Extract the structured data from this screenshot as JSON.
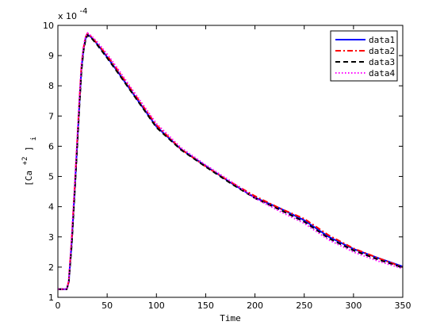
{
  "chart_data": {
    "type": "line",
    "title": "",
    "xlabel": "Time",
    "ylabel": {
      "base": "[Ca",
      "superscript": "+2",
      "close": "]",
      "subscript": "i"
    },
    "xlim": [
      0,
      350
    ],
    "ylim": [
      1,
      10
    ],
    "xticks": [
      0,
      50,
      100,
      150,
      200,
      250,
      300,
      350
    ],
    "yticks": [
      1,
      2,
      3,
      4,
      5,
      6,
      7,
      8,
      9,
      10
    ],
    "y_multiplier": {
      "prefix": "x 10",
      "exponent": "-4"
    },
    "grid": false,
    "legend_position": "top-right",
    "series": [
      {
        "name": "data1",
        "color": "#0000ff",
        "style": "solid",
        "x": [
          0,
          9,
          11,
          14,
          17,
          20,
          22,
          24,
          26,
          28,
          30,
          32,
          34,
          40,
          50,
          60,
          75,
          100,
          125,
          150,
          175,
          200,
          225,
          250,
          275,
          300,
          325,
          350
        ],
        "y": [
          1.27,
          1.27,
          1.5,
          2.8,
          4.5,
          6.3,
          7.5,
          8.6,
          9.2,
          9.55,
          9.7,
          9.65,
          9.6,
          9.38,
          8.95,
          8.5,
          7.8,
          6.65,
          5.9,
          5.35,
          4.8,
          4.3,
          3.95,
          3.55,
          3.0,
          2.6,
          2.3,
          2.02
        ]
      },
      {
        "name": "data2",
        "color": "#ff0000",
        "style": "dashdot",
        "x": [
          0,
          9,
          11,
          14,
          17,
          20,
          22,
          24,
          26,
          28,
          30,
          32,
          34,
          40,
          50,
          60,
          75,
          100,
          125,
          150,
          175,
          200,
          225,
          250,
          275,
          300,
          325,
          350
        ],
        "y": [
          1.27,
          1.27,
          1.52,
          2.9,
          4.6,
          6.4,
          7.6,
          8.7,
          9.25,
          9.6,
          9.73,
          9.68,
          9.62,
          9.4,
          9.0,
          8.55,
          7.85,
          6.7,
          5.9,
          5.33,
          4.82,
          4.35,
          3.95,
          3.6,
          3.05,
          2.62,
          2.3,
          2.0
        ]
      },
      {
        "name": "data3",
        "color": "#000000",
        "style": "dashed",
        "x": [
          0,
          9,
          11,
          14,
          17,
          20,
          22,
          24,
          26,
          28,
          30,
          32,
          34,
          40,
          50,
          60,
          75,
          100,
          125,
          150,
          175,
          200,
          225,
          250,
          275,
          300,
          325,
          350
        ],
        "y": [
          1.27,
          1.27,
          1.48,
          2.7,
          4.4,
          6.2,
          7.4,
          8.5,
          9.15,
          9.5,
          9.68,
          9.62,
          9.58,
          9.35,
          8.92,
          8.47,
          7.78,
          6.62,
          5.88,
          5.32,
          4.78,
          4.28,
          3.9,
          3.5,
          2.95,
          2.55,
          2.25,
          1.98
        ]
      },
      {
        "name": "data4",
        "color": "#ff00ff",
        "style": "dotted",
        "x": [
          0,
          9,
          11,
          14,
          17,
          20,
          22,
          24,
          26,
          28,
          30,
          32,
          34,
          40,
          50,
          60,
          75,
          100,
          125,
          150,
          175,
          200,
          225,
          250,
          275,
          300,
          325,
          350
        ],
        "y": [
          1.27,
          1.27,
          1.55,
          3.0,
          4.7,
          6.5,
          7.7,
          8.75,
          9.3,
          9.62,
          9.75,
          9.7,
          9.65,
          9.45,
          9.05,
          8.6,
          7.9,
          6.75,
          5.95,
          5.38,
          4.85,
          4.28,
          3.85,
          3.45,
          2.9,
          2.5,
          2.2,
          1.95
        ]
      }
    ]
  }
}
